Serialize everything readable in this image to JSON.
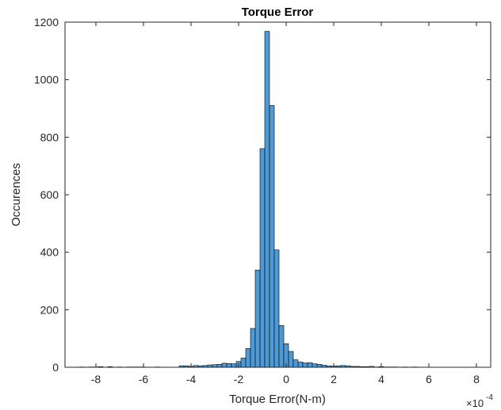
{
  "chart_data": {
    "type": "bar",
    "title": "Torque Error",
    "xlabel": "Torque Error(N-m)",
    "ylabel": "Occurences",
    "x_exponent_label": "×10",
    "x_exponent_power": "-4",
    "xlim": [
      -9.3,
      8.6
    ],
    "ylim": [
      0,
      1200
    ],
    "xticks": [
      -8,
      -6,
      -4,
      -2,
      0,
      2,
      4,
      6,
      8
    ],
    "yticks": [
      0,
      200,
      400,
      600,
      800,
      1000,
      1200
    ],
    "bin_width": 0.2,
    "bin_start": -8.9,
    "bar_color": "#4f9ad4",
    "edge_color": "#000000",
    "values": [
      0,
      1,
      0,
      1,
      1,
      2,
      0,
      2,
      0,
      1,
      0,
      1,
      1,
      1,
      1,
      0,
      0,
      1,
      0,
      0,
      0,
      0,
      5,
      5,
      3,
      6,
      5,
      6,
      8,
      9,
      10,
      14,
      13,
      12,
      20,
      32,
      65,
      135,
      338,
      760,
      1168,
      910,
      408,
      145,
      82,
      55,
      26,
      18,
      15,
      16,
      12,
      10,
      7,
      5,
      4,
      5,
      6,
      5,
      3,
      3,
      2,
      2,
      3,
      1,
      2,
      1,
      1,
      1,
      0,
      1,
      0,
      1,
      0,
      0,
      0,
      0,
      0,
      0,
      0,
      0,
      0,
      0,
      0,
      0,
      0,
      0,
      0,
      0,
      0
    ]
  }
}
